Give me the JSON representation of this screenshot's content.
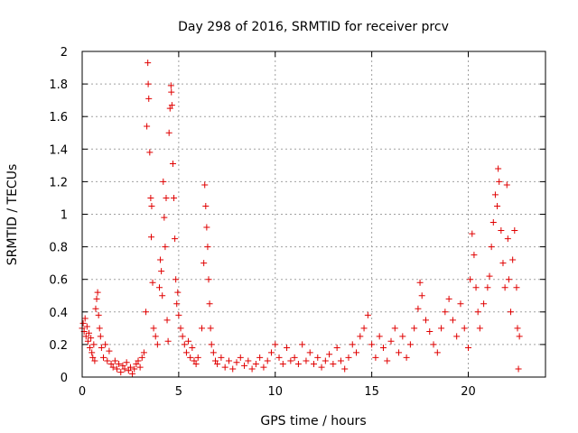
{
  "chart_data": {
    "type": "scatter",
    "title": "Day 298 of 2016, SRMTID for receiver prcv",
    "xlabel": "GPS time / hours",
    "ylabel": "SRMTID / TECUs",
    "xlim": [
      0,
      24
    ],
    "ylim": [
      0,
      2
    ],
    "xticks": [
      "0",
      "5",
      "10",
      "15",
      "20"
    ],
    "yticks": [
      "0",
      "0.2",
      "0.4",
      "0.6",
      "0.8",
      "1",
      "1.2",
      "1.4",
      "1.6",
      "1.8",
      "2"
    ],
    "grid": true,
    "marker": "+",
    "color": "#e00000",
    "series": [
      {
        "name": "SRMTID",
        "points": [
          [
            0.0,
            0.3
          ],
          [
            0.05,
            0.33
          ],
          [
            0.1,
            0.28
          ],
          [
            0.15,
            0.36
          ],
          [
            0.2,
            0.25
          ],
          [
            0.25,
            0.31
          ],
          [
            0.3,
            0.22
          ],
          [
            0.35,
            0.27
          ],
          [
            0.4,
            0.18
          ],
          [
            0.45,
            0.24
          ],
          [
            0.5,
            0.15
          ],
          [
            0.55,
            0.12
          ],
          [
            0.6,
            0.2
          ],
          [
            0.65,
            0.1
          ],
          [
            0.7,
            0.42
          ],
          [
            0.75,
            0.48
          ],
          [
            0.8,
            0.52
          ],
          [
            0.85,
            0.38
          ],
          [
            0.9,
            0.3
          ],
          [
            0.95,
            0.25
          ],
          [
            1.0,
            0.18
          ],
          [
            1.1,
            0.12
          ],
          [
            1.2,
            0.2
          ],
          [
            1.3,
            0.1
          ],
          [
            1.4,
            0.16
          ],
          [
            1.5,
            0.08
          ],
          [
            1.6,
            0.06
          ],
          [
            1.7,
            0.1
          ],
          [
            1.8,
            0.05
          ],
          [
            1.9,
            0.08
          ],
          [
            2.0,
            0.03
          ],
          [
            2.1,
            0.07
          ],
          [
            2.2,
            0.05
          ],
          [
            2.3,
            0.09
          ],
          [
            2.4,
            0.04
          ],
          [
            2.5,
            0.06
          ],
          [
            2.6,
            0.02
          ],
          [
            2.7,
            0.05
          ],
          [
            2.8,
            0.08
          ],
          [
            2.9,
            0.1
          ],
          [
            3.0,
            0.06
          ],
          [
            3.1,
            0.12
          ],
          [
            3.2,
            0.15
          ],
          [
            3.3,
            0.4
          ],
          [
            3.35,
            1.54
          ],
          [
            3.4,
            1.93
          ],
          [
            3.42,
            1.8
          ],
          [
            3.45,
            1.71
          ],
          [
            3.5,
            1.38
          ],
          [
            3.55,
            1.1
          ],
          [
            3.58,
            0.86
          ],
          [
            3.6,
            1.05
          ],
          [
            3.65,
            0.58
          ],
          [
            3.7,
            0.3
          ],
          [
            3.8,
            0.25
          ],
          [
            3.9,
            0.2
          ],
          [
            4.0,
            0.55
          ],
          [
            4.05,
            0.72
          ],
          [
            4.1,
            0.65
          ],
          [
            4.15,
            0.5
          ],
          [
            4.2,
            1.2
          ],
          [
            4.25,
            0.98
          ],
          [
            4.3,
            0.8
          ],
          [
            4.35,
            1.1
          ],
          [
            4.4,
            0.35
          ],
          [
            4.45,
            0.22
          ],
          [
            4.5,
            1.5
          ],
          [
            4.55,
            1.65
          ],
          [
            4.6,
            1.79
          ],
          [
            4.62,
            1.75
          ],
          [
            4.65,
            1.67
          ],
          [
            4.7,
            1.31
          ],
          [
            4.75,
            1.1
          ],
          [
            4.8,
            0.85
          ],
          [
            4.85,
            0.6
          ],
          [
            4.9,
            0.45
          ],
          [
            4.95,
            0.52
          ],
          [
            5.0,
            0.38
          ],
          [
            5.1,
            0.3
          ],
          [
            5.2,
            0.25
          ],
          [
            5.3,
            0.2
          ],
          [
            5.4,
            0.15
          ],
          [
            5.5,
            0.22
          ],
          [
            5.6,
            0.12
          ],
          [
            5.7,
            0.18
          ],
          [
            5.8,
            0.1
          ],
          [
            5.9,
            0.08
          ],
          [
            6.0,
            0.12
          ],
          [
            6.2,
            0.3
          ],
          [
            6.3,
            0.7
          ],
          [
            6.35,
            1.18
          ],
          [
            6.4,
            1.05
          ],
          [
            6.45,
            0.92
          ],
          [
            6.5,
            0.8
          ],
          [
            6.55,
            0.6
          ],
          [
            6.6,
            0.45
          ],
          [
            6.65,
            0.3
          ],
          [
            6.7,
            0.2
          ],
          [
            6.8,
            0.15
          ],
          [
            6.9,
            0.1
          ],
          [
            7.0,
            0.08
          ],
          [
            7.2,
            0.12
          ],
          [
            7.4,
            0.06
          ],
          [
            7.6,
            0.1
          ],
          [
            7.8,
            0.05
          ],
          [
            8.0,
            0.09
          ],
          [
            8.2,
            0.12
          ],
          [
            8.4,
            0.07
          ],
          [
            8.6,
            0.1
          ],
          [
            8.8,
            0.05
          ],
          [
            9.0,
            0.08
          ],
          [
            9.2,
            0.12
          ],
          [
            9.4,
            0.06
          ],
          [
            9.6,
            0.1
          ],
          [
            9.8,
            0.15
          ],
          [
            10.0,
            0.2
          ],
          [
            10.2,
            0.12
          ],
          [
            10.4,
            0.08
          ],
          [
            10.6,
            0.18
          ],
          [
            10.8,
            0.1
          ],
          [
            11.0,
            0.12
          ],
          [
            11.2,
            0.08
          ],
          [
            11.4,
            0.2
          ],
          [
            11.6,
            0.1
          ],
          [
            11.8,
            0.15
          ],
          [
            12.0,
            0.08
          ],
          [
            12.2,
            0.12
          ],
          [
            12.4,
            0.06
          ],
          [
            12.6,
            0.1
          ],
          [
            12.8,
            0.14
          ],
          [
            13.0,
            0.08
          ],
          [
            13.2,
            0.18
          ],
          [
            13.4,
            0.1
          ],
          [
            13.6,
            0.05
          ],
          [
            13.8,
            0.12
          ],
          [
            14.0,
            0.2
          ],
          [
            14.2,
            0.15
          ],
          [
            14.4,
            0.25
          ],
          [
            14.6,
            0.3
          ],
          [
            14.8,
            0.38
          ],
          [
            15.0,
            0.2
          ],
          [
            15.2,
            0.12
          ],
          [
            15.4,
            0.25
          ],
          [
            15.6,
            0.18
          ],
          [
            15.8,
            0.1
          ],
          [
            16.0,
            0.22
          ],
          [
            16.2,
            0.3
          ],
          [
            16.4,
            0.15
          ],
          [
            16.6,
            0.25
          ],
          [
            16.8,
            0.12
          ],
          [
            17.0,
            0.2
          ],
          [
            17.2,
            0.3
          ],
          [
            17.4,
            0.42
          ],
          [
            17.5,
            0.58
          ],
          [
            17.6,
            0.5
          ],
          [
            17.8,
            0.35
          ],
          [
            18.0,
            0.28
          ],
          [
            18.2,
            0.2
          ],
          [
            18.4,
            0.15
          ],
          [
            18.6,
            0.3
          ],
          [
            18.8,
            0.4
          ],
          [
            19.0,
            0.48
          ],
          [
            19.2,
            0.35
          ],
          [
            19.4,
            0.25
          ],
          [
            19.6,
            0.45
          ],
          [
            19.8,
            0.3
          ],
          [
            20.0,
            0.18
          ],
          [
            20.1,
            0.6
          ],
          [
            20.2,
            0.88
          ],
          [
            20.3,
            0.75
          ],
          [
            20.4,
            0.55
          ],
          [
            20.5,
            0.4
          ],
          [
            20.6,
            0.3
          ],
          [
            20.8,
            0.45
          ],
          [
            21.0,
            0.55
          ],
          [
            21.1,
            0.62
          ],
          [
            21.2,
            0.8
          ],
          [
            21.3,
            0.95
          ],
          [
            21.4,
            1.12
          ],
          [
            21.5,
            1.05
          ],
          [
            21.55,
            1.28
          ],
          [
            21.6,
            1.2
          ],
          [
            21.7,
            0.9
          ],
          [
            21.8,
            0.7
          ],
          [
            21.9,
            0.55
          ],
          [
            22.0,
            1.18
          ],
          [
            22.05,
            0.85
          ],
          [
            22.1,
            0.6
          ],
          [
            22.2,
            0.4
          ],
          [
            22.3,
            0.72
          ],
          [
            22.4,
            0.9
          ],
          [
            22.5,
            0.55
          ],
          [
            22.55,
            0.3
          ],
          [
            22.6,
            0.05
          ],
          [
            22.65,
            0.25
          ]
        ]
      }
    ]
  }
}
